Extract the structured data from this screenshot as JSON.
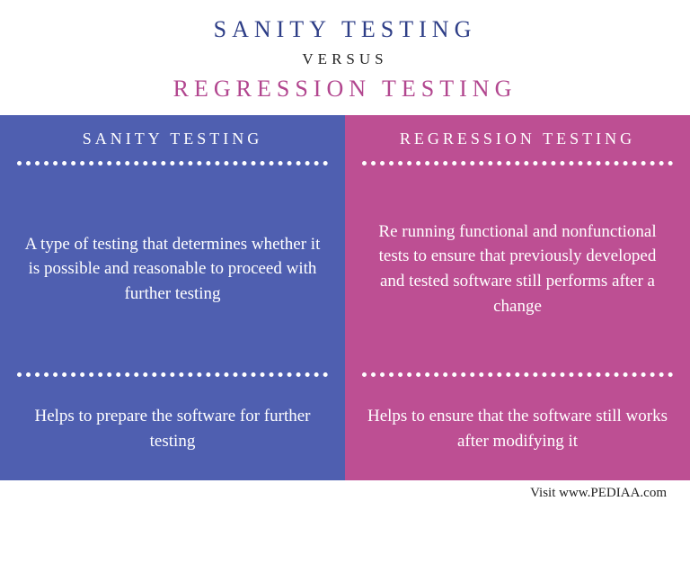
{
  "header": {
    "title1": "SANITY TESTING",
    "title1_color": "#2e3e87",
    "versus": "VERSUS",
    "title2": "REGRESSION TESTING",
    "title2_color": "#b2468f"
  },
  "columns": {
    "left": {
      "bg_color": "#4f5fb0",
      "header": "SANITY TESTING",
      "row1": "A type of testing that determines whether it is possible and reasonable to proceed with further testing",
      "row2": "Helps to prepare the software for further testing"
    },
    "right": {
      "bg_color": "#bd4f93",
      "header": "REGRESSION TESTING",
      "row1": "Re running functional and nonfunctional tests to ensure that previously developed and tested software still performs after a change",
      "row2": "Helps to ensure that the software still works after modifying it"
    }
  },
  "footer": {
    "text": "Visit www.PEDIAA.com"
  },
  "style": {
    "divider_color": "#ffffff",
    "text_color": "#ffffff",
    "title_letter_spacing": "6px",
    "header_letter_spacing": "4px",
    "body_font_size": 19
  }
}
